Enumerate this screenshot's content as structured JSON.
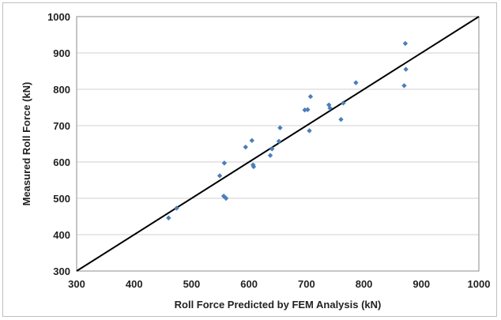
{
  "chart_data": {
    "type": "scatter",
    "title": "",
    "xlabel": "Roll Force Predicted by FEM Analysis (kN)",
    "ylabel": "Measured Roll Force (kN)",
    "xlim": [
      300,
      1000
    ],
    "ylim": [
      300,
      1000
    ],
    "xticks": [
      "300",
      "400",
      "500",
      "600",
      "700",
      "800",
      "900",
      "1000"
    ],
    "yticks": [
      "300",
      "400",
      "500",
      "600",
      "700",
      "800",
      "900",
      "1000"
    ],
    "grid": "horizontal",
    "legend": "none",
    "point_color": "#4a7ebb",
    "line_color": "#000000",
    "reference_line": {
      "x": [
        300,
        1000
      ],
      "y": [
        300,
        1000
      ]
    },
    "series": [
      {
        "values": [
          {
            "x": 460,
            "y": 446
          },
          {
            "x": 474,
            "y": 473
          },
          {
            "x": 549,
            "y": 562
          },
          {
            "x": 556,
            "y": 506
          },
          {
            "x": 557,
            "y": 597
          },
          {
            "x": 560,
            "y": 500
          },
          {
            "x": 594,
            "y": 641
          },
          {
            "x": 605,
            "y": 659
          },
          {
            "x": 607,
            "y": 592
          },
          {
            "x": 608,
            "y": 587
          },
          {
            "x": 637,
            "y": 618
          },
          {
            "x": 640,
            "y": 636
          },
          {
            "x": 652,
            "y": 657
          },
          {
            "x": 654,
            "y": 694
          },
          {
            "x": 697,
            "y": 743
          },
          {
            "x": 702,
            "y": 744
          },
          {
            "x": 705,
            "y": 686
          },
          {
            "x": 707,
            "y": 780
          },
          {
            "x": 739,
            "y": 757
          },
          {
            "x": 741,
            "y": 748
          },
          {
            "x": 760,
            "y": 717
          },
          {
            "x": 764,
            "y": 762
          },
          {
            "x": 786,
            "y": 818
          },
          {
            "x": 870,
            "y": 810
          },
          {
            "x": 872,
            "y": 926
          },
          {
            "x": 873,
            "y": 855
          }
        ]
      }
    ]
  }
}
